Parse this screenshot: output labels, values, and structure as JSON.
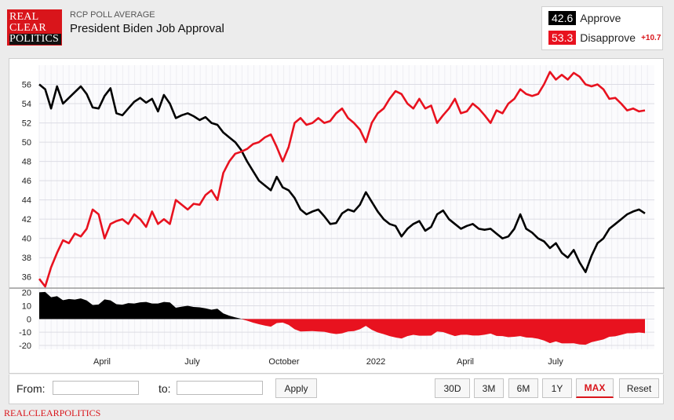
{
  "logo": {
    "line1": "REAL",
    "line2": "CLEAR",
    "line3": "POLITICS"
  },
  "header": {
    "supertitle": "RCP POLL AVERAGE",
    "title": "President Biden Job Approval"
  },
  "legend": {
    "approve": {
      "value": "42.6",
      "label": "Approve",
      "color": "#000000"
    },
    "disapprove": {
      "value": "53.3",
      "label": "Disapprove",
      "color": "#e8121f",
      "spread": "+10.7"
    }
  },
  "chart_data": [
    {
      "type": "line",
      "y_ticks": [
        36,
        38,
        40,
        42,
        44,
        46,
        48,
        50,
        52,
        54,
        56
      ],
      "ylim": [
        35,
        58
      ],
      "x_ticks": [
        "April",
        "July",
        "October",
        "2022",
        "April",
        "July"
      ],
      "grid": true,
      "series": [
        {
          "name": "Approve",
          "color": "#000000",
          "values": [
            56.0,
            55.5,
            53.5,
            55.8,
            54.0,
            54.6,
            55.2,
            55.8,
            55.0,
            53.6,
            53.5,
            54.8,
            55.6,
            53.0,
            52.8,
            53.5,
            54.2,
            54.6,
            54.1,
            54.5,
            53.2,
            54.9,
            54.0,
            52.5,
            52.8,
            53.0,
            52.7,
            52.3,
            52.6,
            52.0,
            51.8,
            51.0,
            50.5,
            50.0,
            49.2,
            48.0,
            47.0,
            46.0,
            45.5,
            45.0,
            46.4,
            45.3,
            45.0,
            44.2,
            43.0,
            42.5,
            42.8,
            43.0,
            42.3,
            41.5,
            41.6,
            42.6,
            43.0,
            42.8,
            43.5,
            44.8,
            43.8,
            42.8,
            42.0,
            41.5,
            41.3,
            40.2,
            41.0,
            41.5,
            41.8,
            40.8,
            41.2,
            42.5,
            42.9,
            42.0,
            41.5,
            41.0,
            41.3,
            41.5,
            41.0,
            40.9,
            41.0,
            40.5,
            40.0,
            40.2,
            41.0,
            42.5,
            41.0,
            40.6,
            40.0,
            39.7,
            39.0,
            39.5,
            38.5,
            38.0,
            38.8,
            37.5,
            36.5,
            38.2,
            39.5,
            40.0,
            41.0,
            41.5,
            42.0,
            42.5,
            42.8,
            43.0,
            42.6
          ]
        },
        {
          "name": "Disapprove",
          "color": "#e8121f",
          "values": [
            35.8,
            35.0,
            37.0,
            38.5,
            39.8,
            39.5,
            40.5,
            40.2,
            41.0,
            43.0,
            42.5,
            40.0,
            41.5,
            41.8,
            42.0,
            41.5,
            42.5,
            42.0,
            41.2,
            42.8,
            41.5,
            42.0,
            41.5,
            44.0,
            43.5,
            43.0,
            43.6,
            43.5,
            44.5,
            45.0,
            44.0,
            46.8,
            48.0,
            48.8,
            49.0,
            49.3,
            49.8,
            50.0,
            50.5,
            50.8,
            49.5,
            48.0,
            49.5,
            52.0,
            52.5,
            51.8,
            52.0,
            52.5,
            52.0,
            52.2,
            53.0,
            53.5,
            52.5,
            52.0,
            51.3,
            50.0,
            52.0,
            53.0,
            53.5,
            54.5,
            55.3,
            55.0,
            54.0,
            53.5,
            54.5,
            53.5,
            53.8,
            52.0,
            52.8,
            53.5,
            54.5,
            53.0,
            53.2,
            54.0,
            53.5,
            52.8,
            52.0,
            53.3,
            53.0,
            54.0,
            54.5,
            55.5,
            55.0,
            54.8,
            55.0,
            56.0,
            57.3,
            56.5,
            57.0,
            56.5,
            57.2,
            56.8,
            56.0,
            55.8,
            56.0,
            55.5,
            54.5,
            54.6,
            54.0,
            53.3,
            53.5,
            53.2,
            53.3
          ]
        }
      ]
    },
    {
      "type": "area",
      "name": "Spread",
      "y_ticks": [
        20,
        10,
        0,
        -10,
        -20
      ],
      "ylim": [
        -23,
        21
      ],
      "grid": true,
      "series": [
        {
          "name": "Spread",
          "values": [
            20.2,
            20.5,
            16.5,
            17.3,
            14.2,
            15.1,
            14.7,
            15.6,
            14.0,
            10.6,
            11.0,
            14.8,
            14.1,
            11.2,
            10.8,
            12.0,
            11.7,
            12.6,
            12.9,
            11.7,
            11.7,
            12.9,
            12.5,
            8.5,
            9.3,
            10.0,
            9.1,
            8.8,
            8.1,
            7.0,
            7.8,
            4.2,
            2.5,
            1.2,
            0.2,
            -1.3,
            -2.8,
            -4.0,
            -5.0,
            -5.8,
            -3.1,
            -2.7,
            -4.5,
            -7.8,
            -9.5,
            -9.3,
            -9.2,
            -9.5,
            -9.7,
            -10.7,
            -11.4,
            -10.9,
            -9.5,
            -9.2,
            -7.8,
            -5.2,
            -8.2,
            -10.2,
            -11.5,
            -13.0,
            -14.0,
            -14.8,
            -13.0,
            -12.0,
            -12.7,
            -12.7,
            -12.6,
            -9.5,
            -9.9,
            -11.5,
            -13.0,
            -12.0,
            -11.9,
            -12.5,
            -12.5,
            -11.9,
            -11.0,
            -12.8,
            -13.0,
            -13.8,
            -13.5,
            -13.0,
            -14.0,
            -14.2,
            -15.0,
            -16.3,
            -18.3,
            -17.0,
            -18.5,
            -18.5,
            -18.4,
            -19.3,
            -19.5,
            -17.6,
            -16.5,
            -15.5,
            -13.5,
            -13.1,
            -12.0,
            -10.8,
            -10.7,
            -10.2,
            -10.7
          ]
        }
      ]
    }
  ],
  "controls": {
    "from_label": "From:",
    "to_label": "to:",
    "apply_label": "Apply",
    "range_buttons": [
      "30D",
      "3M",
      "6M",
      "1Y",
      "MAX",
      "Reset"
    ],
    "active_range": "MAX"
  },
  "footer": {
    "text": "REALCLEARPOLITICS"
  }
}
